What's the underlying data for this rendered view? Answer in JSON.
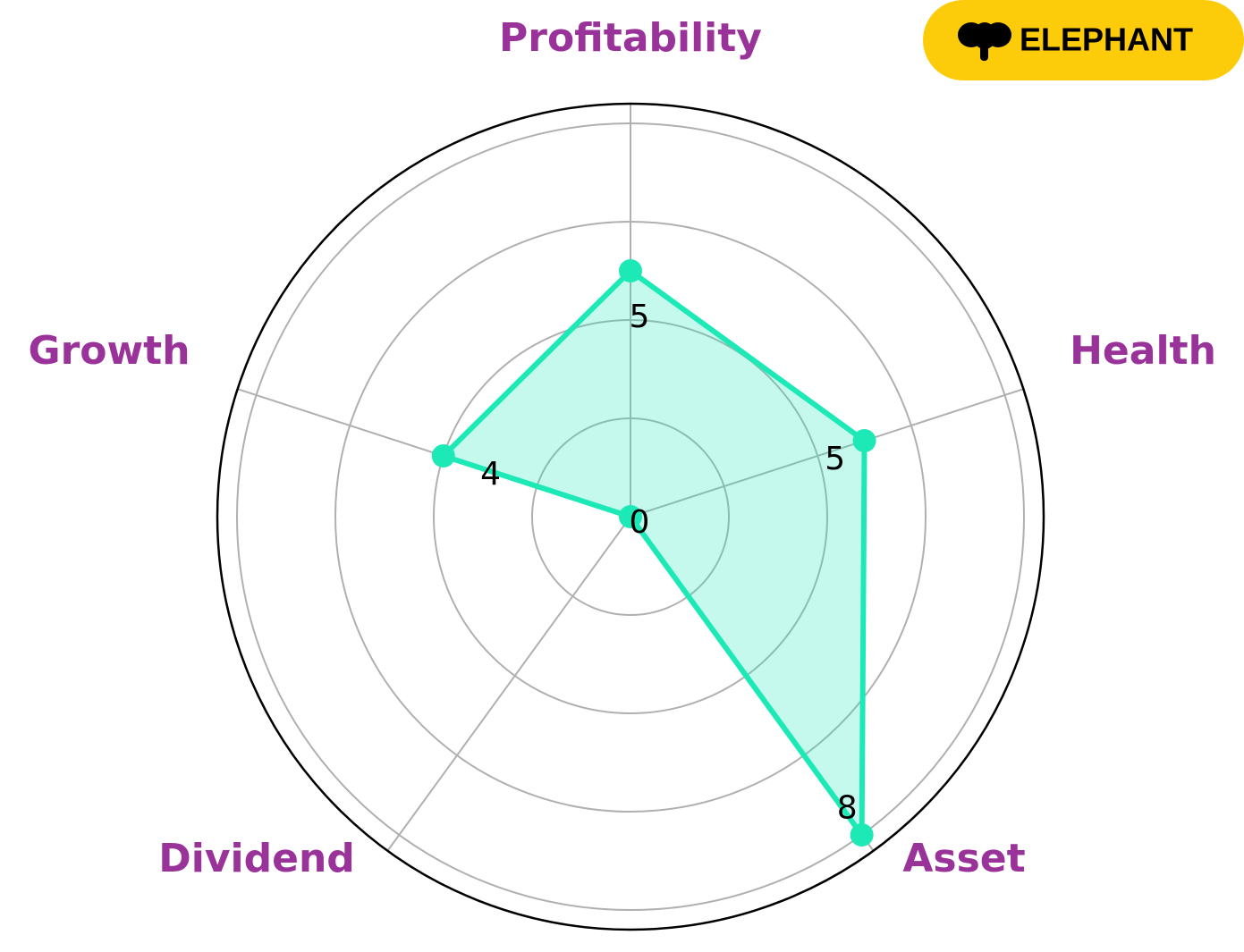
{
  "chart_data": {
    "type": "radar",
    "categories": [
      "Profitability",
      "Health",
      "Asset",
      "Dividend",
      "Growth"
    ],
    "values": [
      5,
      5,
      8,
      0,
      4
    ],
    "color": "#1de9b6",
    "ylim": [
      0,
      8.4
    ],
    "yticks": [
      2,
      4,
      6,
      8
    ],
    "grid": true
  },
  "logo": "ELEPHANT"
}
